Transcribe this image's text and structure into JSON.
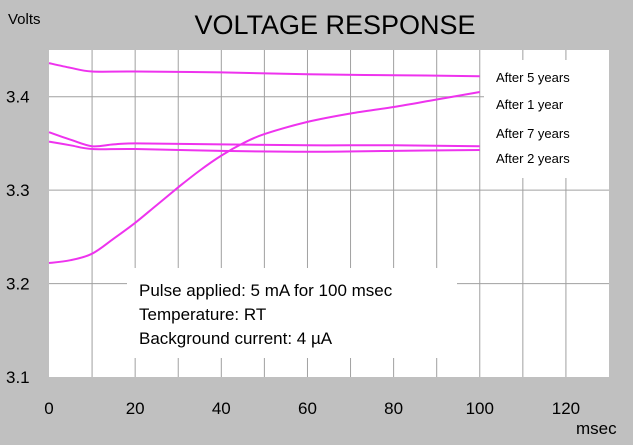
{
  "chart_data": {
    "type": "line",
    "title": "VOLTAGE RESPONSE",
    "ylabel": "Volts",
    "xlabel": "msec",
    "xlim": [
      0,
      130
    ],
    "ylim": [
      3.1,
      3.45
    ],
    "xticks": [
      0,
      20,
      40,
      60,
      80,
      100,
      120
    ],
    "yticks": [
      3.1,
      3.2,
      3.3,
      3.4
    ],
    "ytick_labels": [
      "3.1",
      "3.2",
      "3.3",
      "3.4"
    ],
    "grid": true,
    "line_color": "#ee33ee",
    "series": [
      {
        "name": "After 5 years",
        "x": [
          0,
          5,
          10,
          20,
          40,
          60,
          80,
          100
        ],
        "y": [
          3.436,
          3.431,
          3.427,
          3.427,
          3.426,
          3.424,
          3.423,
          3.422
        ]
      },
      {
        "name": "After 1 year",
        "x": [
          0,
          5,
          10,
          15,
          20,
          25,
          30,
          35,
          40,
          45,
          50,
          60,
          70,
          80,
          90,
          100
        ],
        "y": [
          3.222,
          3.225,
          3.232,
          3.248,
          3.265,
          3.284,
          3.303,
          3.321,
          3.337,
          3.35,
          3.36,
          3.373,
          3.382,
          3.389,
          3.397,
          3.405
        ]
      },
      {
        "name": "After 7 years",
        "x": [
          0,
          5,
          10,
          15,
          20,
          40,
          60,
          80,
          100
        ],
        "y": [
          3.362,
          3.354,
          3.347,
          3.349,
          3.35,
          3.349,
          3.348,
          3.348,
          3.347
        ]
      },
      {
        "name": "After 2 years",
        "x": [
          0,
          5,
          10,
          20,
          40,
          60,
          80,
          100
        ],
        "y": [
          3.352,
          3.348,
          3.344,
          3.344,
          3.342,
          3.341,
          3.342,
          3.343
        ]
      }
    ],
    "annotations": [
      "Pulse applied: 5 mA for 100 msec",
      "Temperature: RT",
      "Background current: 4 µA"
    ],
    "legend_placement": "right"
  }
}
